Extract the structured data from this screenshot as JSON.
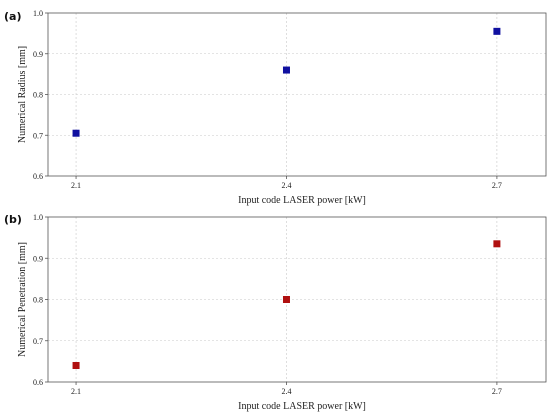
{
  "chart_data": [
    {
      "type": "scatter",
      "panel_label": "(a)",
      "xlabel": "Input code LASER power [kW]",
      "ylabel": "Numerical Radius [mm]",
      "x": [
        2.1,
        2.4,
        2.7
      ],
      "y": [
        0.705,
        0.86,
        0.955
      ],
      "xticks": [
        "2.1",
        "2.4",
        "2.7"
      ],
      "yticks": [
        "0.6",
        "0.7",
        "0.8",
        "0.9",
        "1.0"
      ],
      "xlim": [
        2.06,
        2.77
      ],
      "ylim": [
        0.6,
        1.0
      ],
      "color": "#1010a0",
      "grid": true
    },
    {
      "type": "scatter",
      "panel_label": "(b)",
      "xlabel": "Input code LASER power [kW]",
      "ylabel": "Numerical Penetration [mm]",
      "x": [
        2.1,
        2.4,
        2.7
      ],
      "y": [
        0.64,
        0.8,
        0.935
      ],
      "xticks": [
        "2.1",
        "2.4",
        "2.7"
      ],
      "yticks": [
        "0.6",
        "0.7",
        "0.8",
        "0.9",
        "1.0"
      ],
      "xlim": [
        2.06,
        2.77
      ],
      "ylim": [
        0.6,
        1.0
      ],
      "color": "#b01010",
      "grid": true
    }
  ]
}
